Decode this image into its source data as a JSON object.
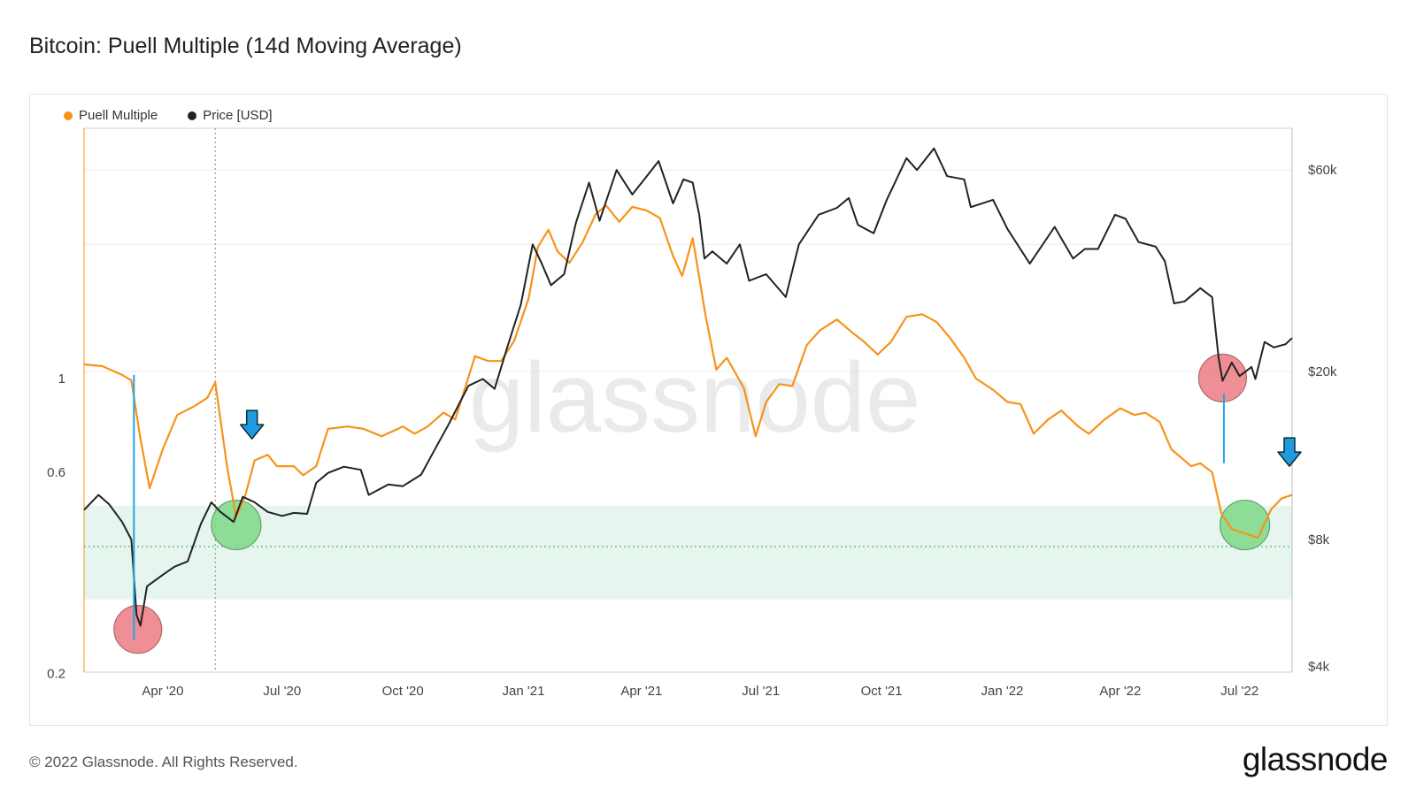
{
  "title": "Bitcoin: Puell Multiple (14d Moving Average)",
  "footer": "© 2022 Glassnode. All Rights Reserved.",
  "brand": "glassnode",
  "watermark": "glassnode",
  "colors": {
    "puell": "#f7931a",
    "price": "#222222",
    "band": "#e6f6ee",
    "bandLine": "#3a9a6a",
    "arrow": "#1f9be0",
    "drop": "#1fa5e5",
    "red": "#ec7a82",
    "green": "#7ed886"
  },
  "legend": [
    {
      "label": "Puell Multiple",
      "color": "#f7931a"
    },
    {
      "label": "Price [USD]",
      "color": "#222222"
    }
  ],
  "chart_data": {
    "type": "line",
    "title": "Bitcoin: Puell Multiple (14d Moving Average)",
    "x_ticks": [
      "Apr '20",
      "Jul '20",
      "Oct '20",
      "Jan '21",
      "Apr '21",
      "Jul '21",
      "Oct '21",
      "Jan '22",
      "Apr '22",
      "Jul '22"
    ],
    "x_tick_dates": [
      "2020-04-01",
      "2020-07-01",
      "2020-10-01",
      "2021-01-01",
      "2021-04-01",
      "2021-07-01",
      "2021-10-01",
      "2022-01-01",
      "2022-04-01",
      "2022-07-01"
    ],
    "xlim": [
      "2020-02-01",
      "2022-08-10"
    ],
    "y_left": {
      "label": "Puell Multiple",
      "scale": "log",
      "ticks": [
        0.2,
        0.6,
        1
      ],
      "tick_labels": [
        "0.2",
        "0.6",
        "1"
      ]
    },
    "y_right": {
      "label": "Price [USD]",
      "scale": "log",
      "ticks": [
        4000,
        8000,
        20000,
        60000
      ],
      "tick_labels": [
        "$4k",
        "$8k",
        "$20k",
        "$60k"
      ]
    },
    "band": {
      "from": 0.3,
      "to": 0.5,
      "dashed_line": 0.4
    },
    "series": [
      {
        "name": "Puell Multiple",
        "axis": "left",
        "points": [
          [
            "2020-02-01",
            1.08
          ],
          [
            "2020-02-15",
            1.07
          ],
          [
            "2020-03-01",
            1.02
          ],
          [
            "2020-03-08",
            0.99
          ],
          [
            "2020-03-15",
            0.72
          ],
          [
            "2020-03-22",
            0.55
          ],
          [
            "2020-04-01",
            0.68
          ],
          [
            "2020-04-12",
            0.82
          ],
          [
            "2020-04-25",
            0.86
          ],
          [
            "2020-05-05",
            0.9
          ],
          [
            "2020-05-11",
            0.98
          ],
          [
            "2020-05-20",
            0.62
          ],
          [
            "2020-05-27",
            0.47
          ],
          [
            "2020-06-03",
            0.53
          ],
          [
            "2020-06-10",
            0.64
          ],
          [
            "2020-06-20",
            0.66
          ],
          [
            "2020-06-27",
            0.62
          ],
          [
            "2020-07-10",
            0.62
          ],
          [
            "2020-07-17",
            0.59
          ],
          [
            "2020-07-27",
            0.62
          ],
          [
            "2020-08-05",
            0.76
          ],
          [
            "2020-08-20",
            0.77
          ],
          [
            "2020-09-01",
            0.76
          ],
          [
            "2020-09-15",
            0.73
          ],
          [
            "2020-10-01",
            0.77
          ],
          [
            "2020-10-10",
            0.74
          ],
          [
            "2020-10-20",
            0.77
          ],
          [
            "2020-11-01",
            0.83
          ],
          [
            "2020-11-10",
            0.8
          ],
          [
            "2020-11-25",
            1.13
          ],
          [
            "2020-12-05",
            1.1
          ],
          [
            "2020-12-15",
            1.1
          ],
          [
            "2020-12-25",
            1.23
          ],
          [
            "2021-01-05",
            1.55
          ],
          [
            "2021-01-12",
            2.05
          ],
          [
            "2021-01-20",
            2.25
          ],
          [
            "2021-01-27",
            2.0
          ],
          [
            "2021-02-05",
            1.88
          ],
          [
            "2021-02-15",
            2.1
          ],
          [
            "2021-02-25",
            2.45
          ],
          [
            "2021-03-05",
            2.57
          ],
          [
            "2021-03-15",
            2.35
          ],
          [
            "2021-03-25",
            2.55
          ],
          [
            "2021-04-05",
            2.5
          ],
          [
            "2021-04-15",
            2.4
          ],
          [
            "2021-04-25",
            1.95
          ],
          [
            "2021-05-02",
            1.75
          ],
          [
            "2021-05-10",
            2.15
          ],
          [
            "2021-05-20",
            1.4
          ],
          [
            "2021-05-28",
            1.05
          ],
          [
            "2021-06-05",
            1.12
          ],
          [
            "2021-06-18",
            0.95
          ],
          [
            "2021-06-27",
            0.73
          ],
          [
            "2021-07-05",
            0.88
          ],
          [
            "2021-07-15",
            0.97
          ],
          [
            "2021-07-25",
            0.96
          ],
          [
            "2021-08-05",
            1.2
          ],
          [
            "2021-08-15",
            1.3
          ],
          [
            "2021-08-28",
            1.38
          ],
          [
            "2021-09-08",
            1.29
          ],
          [
            "2021-09-18",
            1.22
          ],
          [
            "2021-09-28",
            1.14
          ],
          [
            "2021-10-08",
            1.22
          ],
          [
            "2021-10-20",
            1.4
          ],
          [
            "2021-11-01",
            1.42
          ],
          [
            "2021-11-12",
            1.36
          ],
          [
            "2021-11-22",
            1.25
          ],
          [
            "2021-12-03",
            1.12
          ],
          [
            "2021-12-12",
            1.0
          ],
          [
            "2021-12-25",
            0.94
          ],
          [
            "2022-01-05",
            0.88
          ],
          [
            "2022-01-15",
            0.87
          ],
          [
            "2022-01-25",
            0.74
          ],
          [
            "2022-02-05",
            0.8
          ],
          [
            "2022-02-15",
            0.84
          ],
          [
            "2022-02-28",
            0.77
          ],
          [
            "2022-03-08",
            0.74
          ],
          [
            "2022-03-20",
            0.8
          ],
          [
            "2022-04-01",
            0.85
          ],
          [
            "2022-04-12",
            0.82
          ],
          [
            "2022-04-20",
            0.83
          ],
          [
            "2022-05-01",
            0.79
          ],
          [
            "2022-05-10",
            0.68
          ],
          [
            "2022-05-25",
            0.62
          ],
          [
            "2022-06-01",
            0.63
          ],
          [
            "2022-06-10",
            0.6
          ],
          [
            "2022-06-17",
            0.48
          ],
          [
            "2022-06-25",
            0.44
          ],
          [
            "2022-07-05",
            0.43
          ],
          [
            "2022-07-15",
            0.42
          ],
          [
            "2022-07-25",
            0.49
          ],
          [
            "2022-08-02",
            0.52
          ],
          [
            "2022-08-10",
            0.53
          ]
        ]
      },
      {
        "name": "Price [USD]",
        "axis": "right",
        "points": [
          [
            "2020-02-01",
            9400
          ],
          [
            "2020-02-12",
            10200
          ],
          [
            "2020-02-20",
            9700
          ],
          [
            "2020-03-01",
            8800
          ],
          [
            "2020-03-08",
            8000
          ],
          [
            "2020-03-12",
            5300
          ],
          [
            "2020-03-15",
            5000
          ],
          [
            "2020-03-20",
            6200
          ],
          [
            "2020-04-01",
            6600
          ],
          [
            "2020-04-10",
            6900
          ],
          [
            "2020-04-20",
            7100
          ],
          [
            "2020-04-30",
            8700
          ],
          [
            "2020-05-08",
            9800
          ],
          [
            "2020-05-15",
            9300
          ],
          [
            "2020-05-25",
            8800
          ],
          [
            "2020-06-01",
            10100
          ],
          [
            "2020-06-10",
            9800
          ],
          [
            "2020-06-20",
            9300
          ],
          [
            "2020-07-01",
            9100
          ],
          [
            "2020-07-10",
            9250
          ],
          [
            "2020-07-20",
            9200
          ],
          [
            "2020-07-27",
            10900
          ],
          [
            "2020-08-05",
            11500
          ],
          [
            "2020-08-17",
            11900
          ],
          [
            "2020-08-30",
            11700
          ],
          [
            "2020-09-05",
            10200
          ],
          [
            "2020-09-20",
            10800
          ],
          [
            "2020-10-01",
            10700
          ],
          [
            "2020-10-15",
            11400
          ],
          [
            "2020-10-25",
            13000
          ],
          [
            "2020-11-05",
            15000
          ],
          [
            "2020-11-20",
            18500
          ],
          [
            "2020-12-01",
            19200
          ],
          [
            "2020-12-10",
            18200
          ],
          [
            "2020-12-20",
            23000
          ],
          [
            "2020-12-30",
            28800
          ],
          [
            "2021-01-08",
            40000
          ],
          [
            "2021-01-15",
            36000
          ],
          [
            "2021-01-22",
            32000
          ],
          [
            "2021-02-01",
            34000
          ],
          [
            "2021-02-10",
            45000
          ],
          [
            "2021-02-20",
            56000
          ],
          [
            "2021-02-28",
            45500
          ],
          [
            "2021-03-13",
            60000
          ],
          [
            "2021-03-25",
            52500
          ],
          [
            "2021-04-05",
            58000
          ],
          [
            "2021-04-14",
            63000
          ],
          [
            "2021-04-25",
            50000
          ],
          [
            "2021-05-03",
            57000
          ],
          [
            "2021-05-10",
            56000
          ],
          [
            "2021-05-15",
            47000
          ],
          [
            "2021-05-19",
            37000
          ],
          [
            "2021-05-25",
            38500
          ],
          [
            "2021-06-05",
            36000
          ],
          [
            "2021-06-15",
            40000
          ],
          [
            "2021-06-22",
            32800
          ],
          [
            "2021-07-05",
            34000
          ],
          [
            "2021-07-20",
            30000
          ],
          [
            "2021-07-30",
            40000
          ],
          [
            "2021-08-14",
            47000
          ],
          [
            "2021-08-28",
            48800
          ],
          [
            "2021-09-06",
            51500
          ],
          [
            "2021-09-13",
            44500
          ],
          [
            "2021-09-25",
            42500
          ],
          [
            "2021-10-05",
            51000
          ],
          [
            "2021-10-20",
            64000
          ],
          [
            "2021-10-28",
            60000
          ],
          [
            "2021-11-10",
            67500
          ],
          [
            "2021-11-20",
            58000
          ],
          [
            "2021-12-03",
            57000
          ],
          [
            "2021-12-08",
            49000
          ],
          [
            "2021-12-25",
            51000
          ],
          [
            "2022-01-05",
            43500
          ],
          [
            "2022-01-22",
            36000
          ],
          [
            "2022-02-10",
            44000
          ],
          [
            "2022-02-24",
            37000
          ],
          [
            "2022-03-05",
            39000
          ],
          [
            "2022-03-15",
            39000
          ],
          [
            "2022-03-28",
            47000
          ],
          [
            "2022-04-05",
            46000
          ],
          [
            "2022-04-15",
            40500
          ],
          [
            "2022-04-28",
            39500
          ],
          [
            "2022-05-05",
            36500
          ],
          [
            "2022-05-12",
            29000
          ],
          [
            "2022-05-20",
            29300
          ],
          [
            "2022-06-01",
            31500
          ],
          [
            "2022-06-10",
            30000
          ],
          [
            "2022-06-15",
            21500
          ],
          [
            "2022-06-18",
            19000
          ],
          [
            "2022-06-25",
            21000
          ],
          [
            "2022-07-01",
            19500
          ],
          [
            "2022-07-10",
            20500
          ],
          [
            "2022-07-13",
            19200
          ],
          [
            "2022-07-20",
            23500
          ],
          [
            "2022-07-27",
            22800
          ],
          [
            "2022-08-05",
            23200
          ],
          [
            "2022-08-10",
            24000
          ]
        ]
      }
    ],
    "annotations": {
      "red_circles": [
        {
          "date": "2020-03-13",
          "price": 4900
        },
        {
          "date": "2022-06-18",
          "price": 19300
        }
      ],
      "green_circles": [
        {
          "date": "2020-05-27",
          "puell": 0.45
        },
        {
          "date": "2022-07-05",
          "puell": 0.45
        }
      ],
      "arrows": [
        {
          "date": "2020-06-08",
          "puell": 0.72
        },
        {
          "date": "2022-08-08",
          "puell": 0.62
        }
      ],
      "drop_lines": [
        {
          "date": "2020-03-10",
          "puell_from": 1.02,
          "puell_to": 0.24
        },
        {
          "date": "2022-06-19",
          "puell_from": 0.92,
          "puell_to": 0.63
        }
      ],
      "halving_marker": "2020-05-11"
    }
  }
}
